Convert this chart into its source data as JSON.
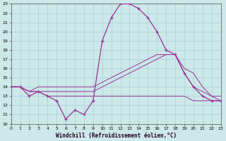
{
  "xlabel": "Windchill (Refroidissement éolien,°C)",
  "xlim": [
    0,
    23
  ],
  "ylim": [
    10,
    23
  ],
  "yticks": [
    10,
    11,
    12,
    13,
    14,
    15,
    16,
    17,
    18,
    19,
    20,
    21,
    22,
    23
  ],
  "xticks": [
    0,
    1,
    2,
    3,
    4,
    5,
    6,
    7,
    8,
    9,
    10,
    11,
    12,
    13,
    14,
    15,
    16,
    17,
    18,
    19,
    20,
    21,
    22,
    23
  ],
  "background_color": "#cce8e8",
  "line_color": "#993399",
  "grid_color": "#b0d8d8",
  "line1_x": [
    0,
    1,
    2,
    3,
    4,
    5,
    6,
    7,
    8,
    9,
    10,
    11,
    12,
    13,
    14,
    15,
    16,
    17,
    18,
    19,
    20,
    21,
    22,
    23
  ],
  "line1_y": [
    14.0,
    14.0,
    13.0,
    13.5,
    13.0,
    12.5,
    10.5,
    11.5,
    11.0,
    12.5,
    19.0,
    21.5,
    23.0,
    23.0,
    22.5,
    21.5,
    20.0,
    18.0,
    17.5,
    15.5,
    14.0,
    13.0,
    12.5,
    12.5
  ],
  "line2_x": [
    0,
    1,
    2,
    3,
    4,
    5,
    6,
    7,
    8,
    9,
    10,
    11,
    12,
    13,
    14,
    15,
    16,
    17,
    18,
    19,
    20,
    21,
    22,
    23
  ],
  "line2_y": [
    14.0,
    14.0,
    13.5,
    13.5,
    13.0,
    13.0,
    13.0,
    13.0,
    13.0,
    13.0,
    13.0,
    13.0,
    13.0,
    13.0,
    13.0,
    13.0,
    13.0,
    13.0,
    13.0,
    13.0,
    12.5,
    12.5,
    12.5,
    12.5
  ],
  "line3_x": [
    0,
    1,
    2,
    3,
    4,
    5,
    6,
    7,
    8,
    9,
    10,
    11,
    12,
    13,
    14,
    15,
    16,
    17,
    18,
    19,
    20,
    21,
    22,
    23
  ],
  "line3_y": [
    14.0,
    14.0,
    13.5,
    13.5,
    13.5,
    13.5,
    13.5,
    13.5,
    13.5,
    13.5,
    14.0,
    14.5,
    15.0,
    15.5,
    16.0,
    16.5,
    17.0,
    17.5,
    17.5,
    15.5,
    14.0,
    13.5,
    13.0,
    13.0
  ],
  "line4_x": [
    0,
    1,
    2,
    3,
    4,
    5,
    6,
    7,
    8,
    9,
    10,
    11,
    12,
    13,
    14,
    15,
    16,
    17,
    18,
    19,
    20,
    21,
    22,
    23
  ],
  "line4_y": [
    14.0,
    14.0,
    13.5,
    14.0,
    14.0,
    14.0,
    14.0,
    14.0,
    14.0,
    14.0,
    14.5,
    15.0,
    15.5,
    16.0,
    16.5,
    17.0,
    17.5,
    17.5,
    17.5,
    16.0,
    15.5,
    14.0,
    13.0,
    12.5
  ]
}
